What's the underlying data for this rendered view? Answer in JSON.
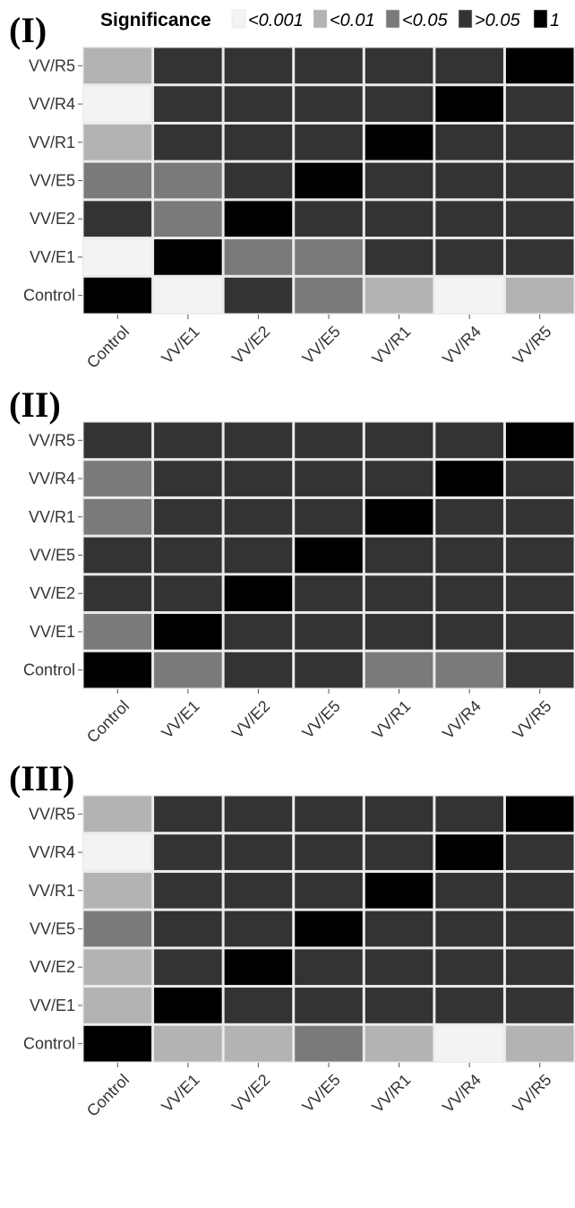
{
  "legend": {
    "title": "Significance",
    "items": [
      {
        "label": "<0.001",
        "level": "<0.001",
        "color": "#f3f3f3"
      },
      {
        "label": "<0.01",
        "level": "<0.01",
        "color": "#b3b3b3"
      },
      {
        "label": "<0.05",
        "level": "<0.05",
        "color": "#7a7a7a"
      },
      {
        "label": ">0.05",
        "level": ">0.05",
        "color": "#333333"
      },
      {
        "label": "1",
        "level": "1",
        "color": "#000000"
      }
    ]
  },
  "colors": {
    "panel_background": "#ebebeb",
    "grid_line": "#ffffff"
  },
  "chart_data": [
    {
      "type": "heatmap",
      "panel_label": "(I)",
      "x_categories": [
        "Control",
        "VV/E1",
        "VV/E2",
        "VV/E5",
        "VV/R1",
        "VV/R4",
        "VV/R5"
      ],
      "y_categories": [
        "Control",
        "VV/E1",
        "VV/E2",
        "VV/E5",
        "VV/R1",
        "VV/R4",
        "VV/R5"
      ],
      "rows": [
        {
          "y": "VV/R5",
          "cells": [
            "<0.01",
            ">0.05",
            ">0.05",
            ">0.05",
            ">0.05",
            ">0.05",
            "1"
          ]
        },
        {
          "y": "VV/R4",
          "cells": [
            "<0.001",
            ">0.05",
            ">0.05",
            ">0.05",
            ">0.05",
            "1",
            ">0.05"
          ]
        },
        {
          "y": "VV/R1",
          "cells": [
            "<0.01",
            ">0.05",
            ">0.05",
            ">0.05",
            "1",
            ">0.05",
            ">0.05"
          ]
        },
        {
          "y": "VV/E5",
          "cells": [
            "<0.05",
            "<0.05",
            ">0.05",
            "1",
            ">0.05",
            ">0.05",
            ">0.05"
          ]
        },
        {
          "y": "VV/E2",
          "cells": [
            ">0.05",
            "<0.05",
            "1",
            ">0.05",
            ">0.05",
            ">0.05",
            ">0.05"
          ]
        },
        {
          "y": "VV/E1",
          "cells": [
            "<0.001",
            "1",
            "<0.05",
            "<0.05",
            ">0.05",
            ">0.05",
            ">0.05"
          ]
        },
        {
          "y": "Control",
          "cells": [
            "1",
            "<0.001",
            ">0.05",
            "<0.05",
            "<0.01",
            "<0.001",
            "<0.01"
          ]
        }
      ]
    },
    {
      "type": "heatmap",
      "panel_label": "(II)",
      "x_categories": [
        "Control",
        "VV/E1",
        "VV/E2",
        "VV/E5",
        "VV/R1",
        "VV/R4",
        "VV/R5"
      ],
      "y_categories": [
        "Control",
        "VV/E1",
        "VV/E2",
        "VV/E5",
        "VV/R1",
        "VV/R4",
        "VV/R5"
      ],
      "rows": [
        {
          "y": "VV/R5",
          "cells": [
            ">0.05",
            ">0.05",
            ">0.05",
            ">0.05",
            ">0.05",
            ">0.05",
            "1"
          ]
        },
        {
          "y": "VV/R4",
          "cells": [
            "<0.05",
            ">0.05",
            ">0.05",
            ">0.05",
            ">0.05",
            "1",
            ">0.05"
          ]
        },
        {
          "y": "VV/R1",
          "cells": [
            "<0.05",
            ">0.05",
            ">0.05",
            ">0.05",
            "1",
            ">0.05",
            ">0.05"
          ]
        },
        {
          "y": "VV/E5",
          "cells": [
            ">0.05",
            ">0.05",
            ">0.05",
            "1",
            ">0.05",
            ">0.05",
            ">0.05"
          ]
        },
        {
          "y": "VV/E2",
          "cells": [
            ">0.05",
            ">0.05",
            "1",
            ">0.05",
            ">0.05",
            ">0.05",
            ">0.05"
          ]
        },
        {
          "y": "VV/E1",
          "cells": [
            "<0.05",
            "1",
            ">0.05",
            ">0.05",
            ">0.05",
            ">0.05",
            ">0.05"
          ]
        },
        {
          "y": "Control",
          "cells": [
            "1",
            "<0.05",
            ">0.05",
            ">0.05",
            "<0.05",
            "<0.05",
            ">0.05"
          ]
        }
      ]
    },
    {
      "type": "heatmap",
      "panel_label": "(III)",
      "x_categories": [
        "Control",
        "VV/E1",
        "VV/E2",
        "VV/E5",
        "VV/R1",
        "VV/R4",
        "VV/R5"
      ],
      "y_categories": [
        "Control",
        "VV/E1",
        "VV/E2",
        "VV/E5",
        "VV/R1",
        "VV/R4",
        "VV/R5"
      ],
      "rows": [
        {
          "y": "VV/R5",
          "cells": [
            "<0.01",
            ">0.05",
            ">0.05",
            ">0.05",
            ">0.05",
            ">0.05",
            "1"
          ]
        },
        {
          "y": "VV/R4",
          "cells": [
            "<0.001",
            ">0.05",
            ">0.05",
            ">0.05",
            ">0.05",
            "1",
            ">0.05"
          ]
        },
        {
          "y": "VV/R1",
          "cells": [
            "<0.01",
            ">0.05",
            ">0.05",
            ">0.05",
            "1",
            ">0.05",
            ">0.05"
          ]
        },
        {
          "y": "VV/E5",
          "cells": [
            "<0.05",
            ">0.05",
            ">0.05",
            "1",
            ">0.05",
            ">0.05",
            ">0.05"
          ]
        },
        {
          "y": "VV/E2",
          "cells": [
            "<0.01",
            ">0.05",
            "1",
            ">0.05",
            ">0.05",
            ">0.05",
            ">0.05"
          ]
        },
        {
          "y": "VV/E1",
          "cells": [
            "<0.01",
            "1",
            ">0.05",
            ">0.05",
            ">0.05",
            ">0.05",
            ">0.05"
          ]
        },
        {
          "y": "Control",
          "cells": [
            "1",
            "<0.01",
            "<0.01",
            "<0.05",
            "<0.01",
            "<0.001",
            "<0.01"
          ]
        }
      ]
    }
  ]
}
